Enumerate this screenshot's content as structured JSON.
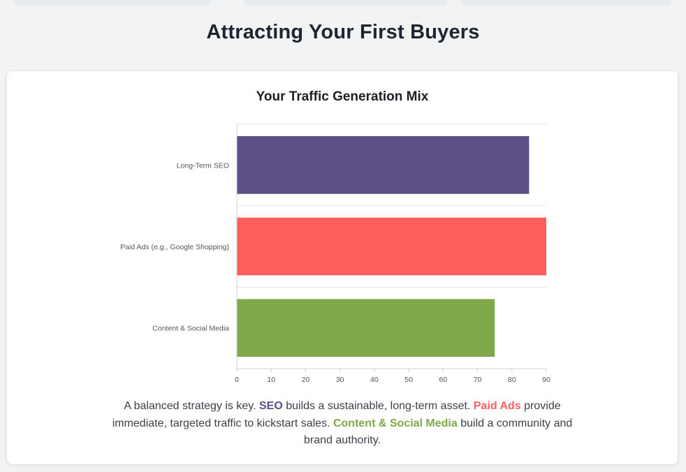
{
  "page": {
    "title": "Attracting Your First Buyers"
  },
  "chart_data": {
    "type": "bar",
    "orientation": "horizontal",
    "title": "Your Traffic Generation Mix",
    "categories": [
      "Long-Term SEO",
      "Paid Ads (e.g., Google Shopping)",
      "Content & Social Media"
    ],
    "values": [
      85,
      90,
      75
    ],
    "colors": [
      "#5d4f85",
      "#ff5e5b",
      "#7fa84b"
    ],
    "xlim": [
      0,
      90
    ],
    "xticks": [
      0,
      10,
      20,
      30,
      40,
      50,
      60,
      70,
      80,
      90
    ],
    "xlabel": "",
    "ylabel": "",
    "grid": true,
    "legend": "none"
  },
  "caption": {
    "part1": "A balanced strategy is key. ",
    "seo": "SEO",
    "part2": " builds a sustainable, long-term asset. ",
    "paid": "Paid Ads",
    "part3": " provide immediate, targeted traffic to kickstart sales. ",
    "content": "Content & Social Media",
    "part4": " build a community and brand authority."
  },
  "colors": {
    "seo": "#5d4f85",
    "paid": "#ff5e5b",
    "content": "#7fa84b",
    "background": "#f1f3f5",
    "card": "#ffffff"
  }
}
